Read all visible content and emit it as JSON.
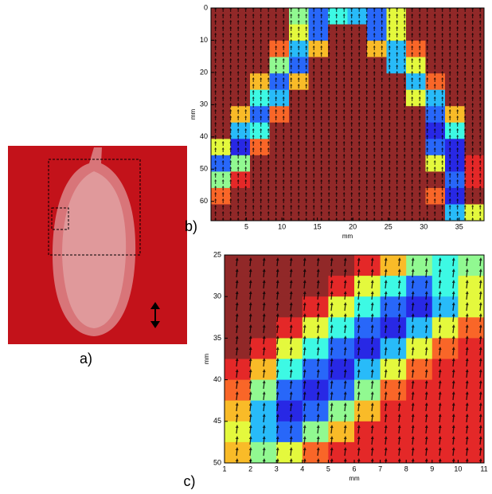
{
  "figure": {
    "photo_label": "a)"
  },
  "chart_data": [
    {
      "type": "heatmap",
      "panel_label": "b)",
      "xlabel": "mm",
      "ylabel": "mm",
      "xlim": [
        0,
        38.5
      ],
      "xticks": [
        5,
        10,
        15,
        20,
        25,
        30,
        35
      ],
      "ylim": [
        0,
        66
      ],
      "yticks": [
        0,
        10,
        20,
        30,
        40,
        50,
        60
      ],
      "y_inverted": true,
      "clim": [
        0,
        1
      ],
      "z": [
        [
          1,
          1,
          1,
          1,
          0.5,
          0.2,
          0.4,
          0.3,
          0.2,
          0.6,
          1,
          1,
          1,
          1
        ],
        [
          1,
          1,
          1,
          1,
          0.6,
          0.2,
          1,
          1,
          0.2,
          0.6,
          1,
          1,
          1,
          1
        ],
        [
          1,
          1,
          1,
          0.8,
          0.3,
          0.7,
          1,
          1,
          0.7,
          0.3,
          0.8,
          1,
          1,
          1
        ],
        [
          1,
          1,
          1,
          0.5,
          0.2,
          1,
          1,
          1,
          1,
          0.3,
          0.6,
          1,
          1,
          1
        ],
        [
          1,
          1,
          0.7,
          0.2,
          0.7,
          1,
          1,
          1,
          1,
          1,
          0.3,
          0.8,
          1,
          1
        ],
        [
          1,
          1,
          0.4,
          0.3,
          1,
          1,
          1,
          1,
          1,
          1,
          0.6,
          0.3,
          1,
          1
        ],
        [
          1,
          0.7,
          0.2,
          0.8,
          1,
          1,
          1,
          1,
          1,
          1,
          1,
          0.2,
          0.7,
          1
        ],
        [
          1,
          0.3,
          0.4,
          1,
          1,
          1,
          1,
          1,
          1,
          1,
          1,
          0.1,
          0.4,
          1
        ],
        [
          0.6,
          0.1,
          0.8,
          1,
          1,
          1,
          1,
          1,
          1,
          1,
          1,
          0.2,
          0.1,
          1
        ],
        [
          0.2,
          0.5,
          1,
          1,
          1,
          1,
          1,
          1,
          1,
          1,
          1,
          0.6,
          0.1,
          0.9
        ],
        [
          0.5,
          0.9,
          1,
          1,
          1,
          1,
          1,
          1,
          1,
          1,
          1,
          1,
          0.2,
          0.9
        ],
        [
          0.8,
          1,
          1,
          1,
          1,
          1,
          1,
          1,
          1,
          1,
          1,
          0.8,
          0.1,
          1
        ],
        [
          1,
          1,
          1,
          1,
          1,
          1,
          1,
          1,
          1,
          1,
          1,
          1,
          0.3,
          0.6
        ]
      ]
    },
    {
      "type": "heatmap",
      "panel_label": "c)",
      "xlabel": "mm",
      "ylabel": "mm",
      "xlim": [
        1,
        11
      ],
      "xticks": [
        1,
        2,
        3,
        4,
        5,
        6,
        7,
        8,
        9,
        10,
        11
      ],
      "ylim": [
        25,
        50
      ],
      "yticks": [
        25,
        30,
        35,
        40,
        45,
        50
      ],
      "y_inverted": true,
      "clim": [
        0,
        1
      ],
      "z": [
        [
          1,
          1,
          1,
          1,
          1,
          0.9,
          0.7,
          0.5,
          0.4,
          0.5
        ],
        [
          1,
          1,
          1,
          1,
          0.9,
          0.6,
          0.4,
          0.2,
          0.4,
          0.6
        ],
        [
          1,
          1,
          1,
          0.9,
          0.6,
          0.4,
          0.2,
          0.1,
          0.3,
          0.6
        ],
        [
          1,
          1,
          0.9,
          0.6,
          0.4,
          0.2,
          0.1,
          0.3,
          0.6,
          0.8
        ],
        [
          1,
          0.9,
          0.6,
          0.4,
          0.2,
          0.1,
          0.3,
          0.6,
          0.8,
          0.9
        ],
        [
          0.9,
          0.7,
          0.4,
          0.2,
          0.1,
          0.3,
          0.6,
          0.8,
          0.9,
          0.9
        ],
        [
          0.8,
          0.5,
          0.2,
          0.1,
          0.2,
          0.5,
          0.8,
          0.9,
          0.9,
          0.9
        ],
        [
          0.7,
          0.3,
          0.1,
          0.2,
          0.5,
          0.7,
          0.9,
          0.9,
          0.9,
          0.9
        ],
        [
          0.6,
          0.3,
          0.2,
          0.5,
          0.7,
          0.9,
          0.9,
          0.9,
          0.9,
          0.9
        ],
        [
          0.7,
          0.5,
          0.6,
          0.8,
          0.9,
          0.9,
          0.9,
          0.9,
          0.9,
          0.9
        ]
      ]
    }
  ]
}
